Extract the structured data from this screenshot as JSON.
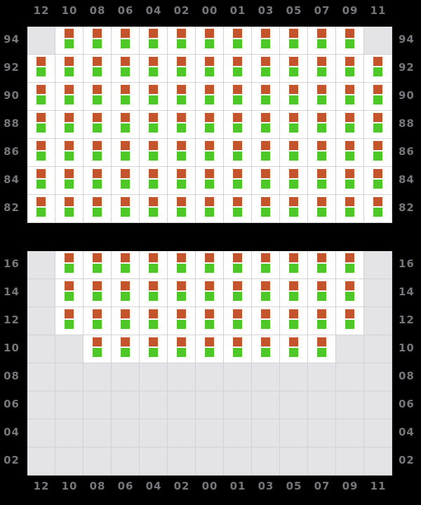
{
  "colors": {
    "page_background": "#000000",
    "plot_background": "#e4e4e6",
    "grid_line": "#d2d2d6",
    "occupied_cell": "#ffffff",
    "label_text": "#76767c",
    "marker_top_orange": "#c4542b",
    "marker_bottom_green": "#4ec728"
  },
  "columns": [
    "12",
    "10",
    "08",
    "06",
    "04",
    "02",
    "00",
    "01",
    "03",
    "05",
    "07",
    "09",
    "11"
  ],
  "top_section": {
    "row_labels": [
      "94",
      "92",
      "90",
      "88",
      "86",
      "84",
      "82"
    ],
    "occupancy": [
      [
        0,
        1,
        1,
        1,
        1,
        1,
        1,
        1,
        1,
        1,
        1,
        1,
        0
      ],
      [
        1,
        1,
        1,
        1,
        1,
        1,
        1,
        1,
        1,
        1,
        1,
        1,
        1
      ],
      [
        1,
        1,
        1,
        1,
        1,
        1,
        1,
        1,
        1,
        1,
        1,
        1,
        1
      ],
      [
        1,
        1,
        1,
        1,
        1,
        1,
        1,
        1,
        1,
        1,
        1,
        1,
        1
      ],
      [
        1,
        1,
        1,
        1,
        1,
        1,
        1,
        1,
        1,
        1,
        1,
        1,
        1
      ],
      [
        1,
        1,
        1,
        1,
        1,
        1,
        1,
        1,
        1,
        1,
        1,
        1,
        1
      ],
      [
        1,
        1,
        1,
        1,
        1,
        1,
        1,
        1,
        1,
        1,
        1,
        1,
        1
      ]
    ]
  },
  "bottom_section": {
    "row_labels": [
      "16",
      "14",
      "12",
      "10",
      "08",
      "06",
      "04",
      "02"
    ],
    "occupancy": [
      [
        0,
        1,
        1,
        1,
        1,
        1,
        1,
        1,
        1,
        1,
        1,
        1,
        0
      ],
      [
        0,
        1,
        1,
        1,
        1,
        1,
        1,
        1,
        1,
        1,
        1,
        1,
        0
      ],
      [
        0,
        1,
        1,
        1,
        1,
        1,
        1,
        1,
        1,
        1,
        1,
        1,
        0
      ],
      [
        0,
        0,
        1,
        1,
        1,
        1,
        1,
        1,
        1,
        1,
        1,
        0,
        0
      ],
      [
        0,
        0,
        0,
        0,
        0,
        0,
        0,
        0,
        0,
        0,
        0,
        0,
        0
      ],
      [
        0,
        0,
        0,
        0,
        0,
        0,
        0,
        0,
        0,
        0,
        0,
        0,
        0
      ],
      [
        0,
        0,
        0,
        0,
        0,
        0,
        0,
        0,
        0,
        0,
        0,
        0,
        0
      ],
      [
        0,
        0,
        0,
        0,
        0,
        0,
        0,
        0,
        0,
        0,
        0,
        0,
        0
      ]
    ]
  }
}
